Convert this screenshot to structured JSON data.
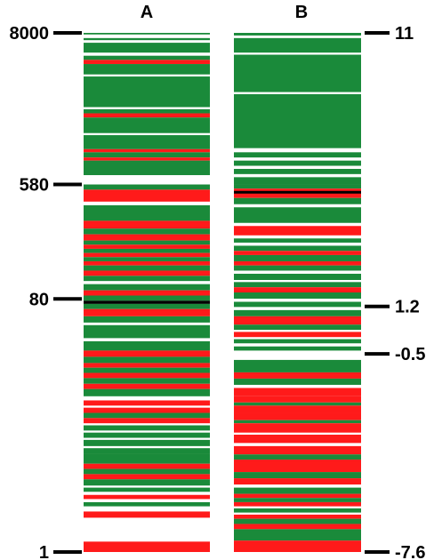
{
  "colors": {
    "green": "#1a8a3a",
    "red": "#ff1a1a",
    "white": "#ffffff",
    "black": "#000000"
  },
  "chart_data": {
    "type": "heatmap",
    "columns": [
      {
        "label": "A",
        "scale": "log",
        "range": [
          1,
          8000
        ],
        "ticks": [
          {
            "label": "8000",
            "value": 8000
          },
          {
            "label": "580",
            "value": 580
          },
          {
            "label": "80",
            "value": 80
          },
          {
            "label": "1",
            "value": 1
          }
        ],
        "tick_side": "left",
        "bands": [
          {
            "from": 0.0,
            "to": 0.003,
            "color": "green"
          },
          {
            "from": 0.01,
            "to": 0.014,
            "color": "green"
          },
          {
            "from": 0.019,
            "to": 0.038,
            "color": "green"
          },
          {
            "from": 0.044,
            "to": 0.052,
            "color": "green"
          },
          {
            "from": 0.052,
            "to": 0.06,
            "color": "red"
          },
          {
            "from": 0.06,
            "to": 0.08,
            "color": "green"
          },
          {
            "from": 0.084,
            "to": 0.143,
            "color": "green"
          },
          {
            "from": 0.147,
            "to": 0.155,
            "color": "green"
          },
          {
            "from": 0.155,
            "to": 0.163,
            "color": "red"
          },
          {
            "from": 0.163,
            "to": 0.193,
            "color": "green"
          },
          {
            "from": 0.197,
            "to": 0.224,
            "color": "green"
          },
          {
            "from": 0.224,
            "to": 0.23,
            "color": "red"
          },
          {
            "from": 0.23,
            "to": 0.24,
            "color": "green"
          },
          {
            "from": 0.24,
            "to": 0.246,
            "color": "red"
          },
          {
            "from": 0.246,
            "to": 0.274,
            "color": "green"
          },
          {
            "from": 0.292,
            "to": 0.302,
            "color": "green"
          },
          {
            "from": 0.302,
            "to": 0.325,
            "color": "red"
          },
          {
            "from": 0.332,
            "to": 0.362,
            "color": "green"
          },
          {
            "from": 0.362,
            "to": 0.377,
            "color": "red"
          },
          {
            "from": 0.377,
            "to": 0.388,
            "color": "green"
          },
          {
            "from": 0.388,
            "to": 0.4,
            "color": "red"
          },
          {
            "from": 0.4,
            "to": 0.408,
            "color": "green"
          },
          {
            "from": 0.408,
            "to": 0.416,
            "color": "red"
          },
          {
            "from": 0.416,
            "to": 0.424,
            "color": "green"
          },
          {
            "from": 0.424,
            "to": 0.432,
            "color": "red"
          },
          {
            "from": 0.432,
            "to": 0.44,
            "color": "green"
          },
          {
            "from": 0.44,
            "to": 0.448,
            "color": "red"
          },
          {
            "from": 0.448,
            "to": 0.458,
            "color": "green"
          },
          {
            "from": 0.458,
            "to": 0.468,
            "color": "red"
          },
          {
            "from": 0.468,
            "to": 0.478,
            "color": "green"
          },
          {
            "from": 0.484,
            "to": 0.496,
            "color": "green"
          },
          {
            "from": 0.496,
            "to": 0.506,
            "color": "red"
          },
          {
            "from": 0.506,
            "to": 0.516,
            "color": "green"
          },
          {
            "from": 0.516,
            "to": 0.522,
            "color": "black"
          },
          {
            "from": 0.522,
            "to": 0.532,
            "color": "green"
          },
          {
            "from": 0.532,
            "to": 0.546,
            "color": "red"
          },
          {
            "from": 0.546,
            "to": 0.558,
            "color": "green"
          },
          {
            "from": 0.563,
            "to": 0.588,
            "color": "green"
          },
          {
            "from": 0.594,
            "to": 0.612,
            "color": "green"
          },
          {
            "from": 0.612,
            "to": 0.624,
            "color": "red"
          },
          {
            "from": 0.624,
            "to": 0.636,
            "color": "green"
          },
          {
            "from": 0.636,
            "to": 0.645,
            "color": "red"
          },
          {
            "from": 0.645,
            "to": 0.655,
            "color": "green"
          },
          {
            "from": 0.655,
            "to": 0.665,
            "color": "red"
          },
          {
            "from": 0.665,
            "to": 0.676,
            "color": "green"
          },
          {
            "from": 0.676,
            "to": 0.686,
            "color": "red"
          },
          {
            "from": 0.686,
            "to": 0.7,
            "color": "green"
          },
          {
            "from": 0.708,
            "to": 0.718,
            "color": "red"
          },
          {
            "from": 0.722,
            "to": 0.732,
            "color": "red"
          },
          {
            "from": 0.732,
            "to": 0.742,
            "color": "green"
          },
          {
            "from": 0.742,
            "to": 0.752,
            "color": "red"
          },
          {
            "from": 0.756,
            "to": 0.766,
            "color": "green"
          },
          {
            "from": 0.77,
            "to": 0.78,
            "color": "green"
          },
          {
            "from": 0.784,
            "to": 0.796,
            "color": "green"
          },
          {
            "from": 0.8,
            "to": 0.81,
            "color": "green"
          },
          {
            "from": 0.81,
            "to": 0.83,
            "color": "green"
          },
          {
            "from": 0.83,
            "to": 0.84,
            "color": "red"
          },
          {
            "from": 0.84,
            "to": 0.85,
            "color": "green"
          },
          {
            "from": 0.85,
            "to": 0.86,
            "color": "red"
          },
          {
            "from": 0.86,
            "to": 0.872,
            "color": "green"
          },
          {
            "from": 0.876,
            "to": 0.884,
            "color": "green"
          },
          {
            "from": 0.89,
            "to": 0.898,
            "color": "red"
          },
          {
            "from": 0.904,
            "to": 0.912,
            "color": "green"
          },
          {
            "from": 0.922,
            "to": 0.934,
            "color": "red"
          },
          {
            "from": 0.934,
            "to": 0.938,
            "color": "white"
          },
          {
            "from": 0.98,
            "to": 1.0,
            "color": "red"
          }
        ],
        "markers": [
          0.519
        ]
      },
      {
        "label": "B",
        "scale": "linear",
        "range": [
          -7.6,
          11
        ],
        "ticks": [
          {
            "label": "11",
            "value": 11
          },
          {
            "label": "1.2",
            "value": 1.2
          },
          {
            "label": "-0.5",
            "value": -0.5
          },
          {
            "label": "-7.6",
            "value": -7.6
          }
        ],
        "tick_side": "right",
        "bands": [
          {
            "from": 0.0,
            "to": 0.005,
            "color": "green"
          },
          {
            "from": 0.01,
            "to": 0.038,
            "color": "green"
          },
          {
            "from": 0.042,
            "to": 0.114,
            "color": "green"
          },
          {
            "from": 0.118,
            "to": 0.222,
            "color": "green"
          },
          {
            "from": 0.23,
            "to": 0.24,
            "color": "green"
          },
          {
            "from": 0.246,
            "to": 0.256,
            "color": "green"
          },
          {
            "from": 0.262,
            "to": 0.272,
            "color": "green"
          },
          {
            "from": 0.278,
            "to": 0.292,
            "color": "green"
          },
          {
            "from": 0.292,
            "to": 0.3,
            "color": "green"
          },
          {
            "from": 0.3,
            "to": 0.318,
            "color": "red"
          },
          {
            "from": 0.318,
            "to": 0.33,
            "color": "green"
          },
          {
            "from": 0.336,
            "to": 0.366,
            "color": "green"
          },
          {
            "from": 0.372,
            "to": 0.39,
            "color": "red"
          },
          {
            "from": 0.396,
            "to": 0.404,
            "color": "green"
          },
          {
            "from": 0.41,
            "to": 0.42,
            "color": "green"
          },
          {
            "from": 0.42,
            "to": 0.428,
            "color": "red"
          },
          {
            "from": 0.428,
            "to": 0.44,
            "color": "green"
          },
          {
            "from": 0.44,
            "to": 0.448,
            "color": "red"
          },
          {
            "from": 0.448,
            "to": 0.458,
            "color": "green"
          },
          {
            "from": 0.464,
            "to": 0.476,
            "color": "green"
          },
          {
            "from": 0.48,
            "to": 0.49,
            "color": "green"
          },
          {
            "from": 0.49,
            "to": 0.5,
            "color": "red"
          },
          {
            "from": 0.5,
            "to": 0.512,
            "color": "green"
          },
          {
            "from": 0.518,
            "to": 0.528,
            "color": "green"
          },
          {
            "from": 0.534,
            "to": 0.546,
            "color": "green"
          },
          {
            "from": 0.546,
            "to": 0.562,
            "color": "red"
          },
          {
            "from": 0.562,
            "to": 0.572,
            "color": "green"
          },
          {
            "from": 0.576,
            "to": 0.586,
            "color": "red"
          },
          {
            "from": 0.59,
            "to": 0.598,
            "color": "green"
          },
          {
            "from": 0.604,
            "to": 0.612,
            "color": "green"
          },
          {
            "from": 0.63,
            "to": 0.654,
            "color": "green"
          },
          {
            "from": 0.654,
            "to": 0.666,
            "color": "red"
          },
          {
            "from": 0.666,
            "to": 0.678,
            "color": "green"
          },
          {
            "from": 0.684,
            "to": 0.7,
            "color": "red"
          },
          {
            "from": 0.7,
            "to": 0.712,
            "color": "red"
          },
          {
            "from": 0.712,
            "to": 0.718,
            "color": "green"
          },
          {
            "from": 0.718,
            "to": 0.732,
            "color": "red"
          },
          {
            "from": 0.732,
            "to": 0.746,
            "color": "red"
          },
          {
            "from": 0.746,
            "to": 0.752,
            "color": "green"
          },
          {
            "from": 0.752,
            "to": 0.77,
            "color": "red"
          },
          {
            "from": 0.774,
            "to": 0.79,
            "color": "red"
          },
          {
            "from": 0.796,
            "to": 0.812,
            "color": "red"
          },
          {
            "from": 0.812,
            "to": 0.822,
            "color": "green"
          },
          {
            "from": 0.822,
            "to": 0.846,
            "color": "red"
          },
          {
            "from": 0.846,
            "to": 0.858,
            "color": "green"
          },
          {
            "from": 0.858,
            "to": 0.87,
            "color": "red"
          },
          {
            "from": 0.876,
            "to": 0.888,
            "color": "green"
          },
          {
            "from": 0.888,
            "to": 0.896,
            "color": "red"
          },
          {
            "from": 0.896,
            "to": 0.904,
            "color": "green"
          },
          {
            "from": 0.904,
            "to": 0.912,
            "color": "red"
          },
          {
            "from": 0.916,
            "to": 0.924,
            "color": "green"
          },
          {
            "from": 0.928,
            "to": 0.936,
            "color": "red"
          },
          {
            "from": 0.936,
            "to": 0.946,
            "color": "green"
          },
          {
            "from": 0.946,
            "to": 0.956,
            "color": "red"
          },
          {
            "from": 0.956,
            "to": 0.978,
            "color": "green"
          },
          {
            "from": 0.978,
            "to": 1.0,
            "color": "red"
          }
        ],
        "markers": [
          0.307
        ]
      }
    ]
  }
}
